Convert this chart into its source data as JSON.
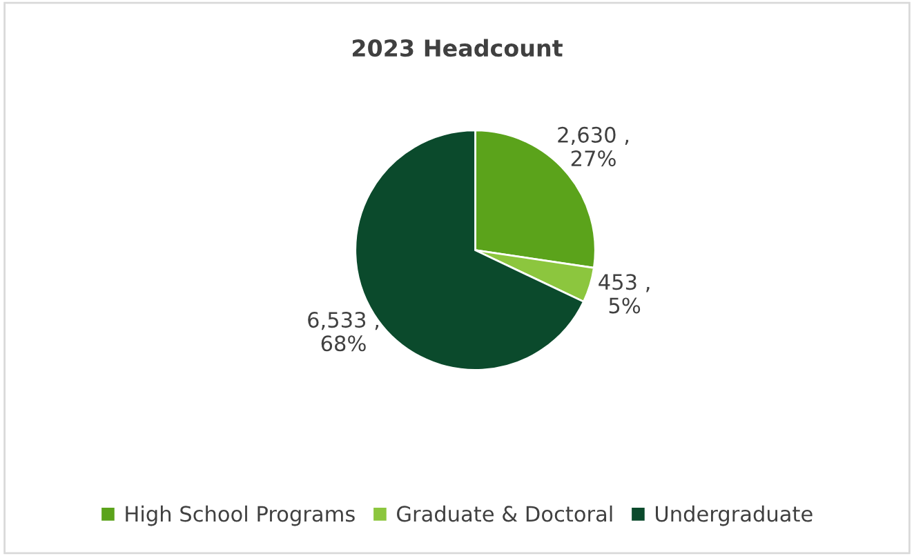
{
  "chart_data": {
    "type": "pie",
    "title": "2023 Headcount",
    "categories": [
      "High School Programs",
      "Graduate & Doctoral",
      "Undergraduate"
    ],
    "values": [
      2630,
      453,
      6533
    ],
    "colors": [
      "#5ba31b",
      "#8cc63e",
      "#0b4a2c"
    ],
    "value_labels": [
      "2,630 ,\n27%",
      "453 ,\n5%",
      "6,533 ,\n68%"
    ],
    "legend": "bottom"
  }
}
